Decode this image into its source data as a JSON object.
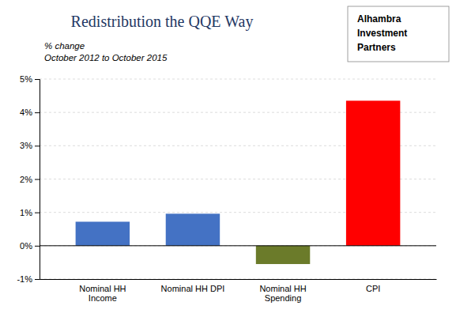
{
  "chart_data": {
    "type": "bar",
    "title": "Redistribution the QQE Way",
    "subtitle": [
      "% change",
      "October 2012 to October 2015"
    ],
    "categories": [
      "Nominal HH\nIncome",
      "Nominal HH DPI",
      "Nominal HH\nSpending",
      "CPI"
    ],
    "values": [
      0.0072,
      0.0096,
      -0.0055,
      0.0435
    ],
    "colors": [
      "#4472C4",
      "#4472C4",
      "#6B7B2A",
      "#FF0000"
    ],
    "ylim": [
      -0.01,
      0.05
    ],
    "yticks": [
      {
        "value": -0.01,
        "label": "-1%"
      },
      {
        "value": 0.0,
        "label": "0%"
      },
      {
        "value": 0.01,
        "label": "1%"
      },
      {
        "value": 0.02,
        "label": "2%"
      },
      {
        "value": 0.03,
        "label": "3%"
      },
      {
        "value": 0.04,
        "label": "4%"
      },
      {
        "value": 0.05,
        "label": "5%"
      }
    ],
    "grid": true,
    "annotations": [
      "Alhambra",
      "Investment",
      "Partners"
    ]
  }
}
